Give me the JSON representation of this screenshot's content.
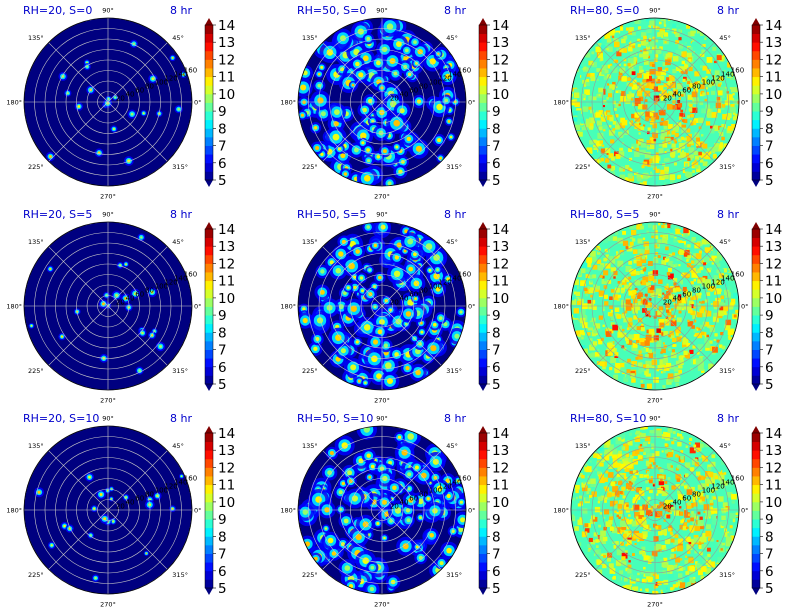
{
  "chart_data": {
    "type": "polar-heatmap",
    "panels": [
      {
        "title_left": "RH=20, S=0",
        "title_right": "8 hr",
        "rh": 20,
        "s": 0
      },
      {
        "title_left": "RH=50, S=0",
        "title_right": "8 hr",
        "rh": 50,
        "s": 0
      },
      {
        "title_left": "RH=80, S=0",
        "title_right": "8 hr",
        "rh": 80,
        "s": 0
      },
      {
        "title_left": "RH=20, S=5",
        "title_right": "8 hr",
        "rh": 20,
        "s": 5
      },
      {
        "title_left": "RH=50, S=5",
        "title_right": "8 hr",
        "rh": 50,
        "s": 5
      },
      {
        "title_left": "RH=80, S=5",
        "title_right": "8 hr",
        "rh": 80,
        "s": 5
      },
      {
        "title_left": "RH=20, S=10",
        "title_right": "8 hr",
        "rh": 20,
        "s": 10
      },
      {
        "title_left": "RH=50, S=10",
        "title_right": "8 hr",
        "rh": 50,
        "s": 10
      },
      {
        "title_left": "RH=80, S=10",
        "title_right": "8 hr",
        "rh": 80,
        "s": 10
      }
    ],
    "angle_labels": [
      "0°",
      "45°",
      "90°",
      "135°",
      "180°",
      "225°",
      "270°",
      "315°"
    ],
    "radial_ticks": [
      "20",
      "40",
      "60",
      "80",
      "100",
      "120",
      "140",
      "160"
    ],
    "colorbar_ticks": [
      "5",
      "6",
      "7",
      "8",
      "9",
      "10",
      "11",
      "12",
      "13",
      "14"
    ],
    "colorbar_range": [
      5,
      14
    ],
    "colormap": "jet",
    "grid": true
  }
}
